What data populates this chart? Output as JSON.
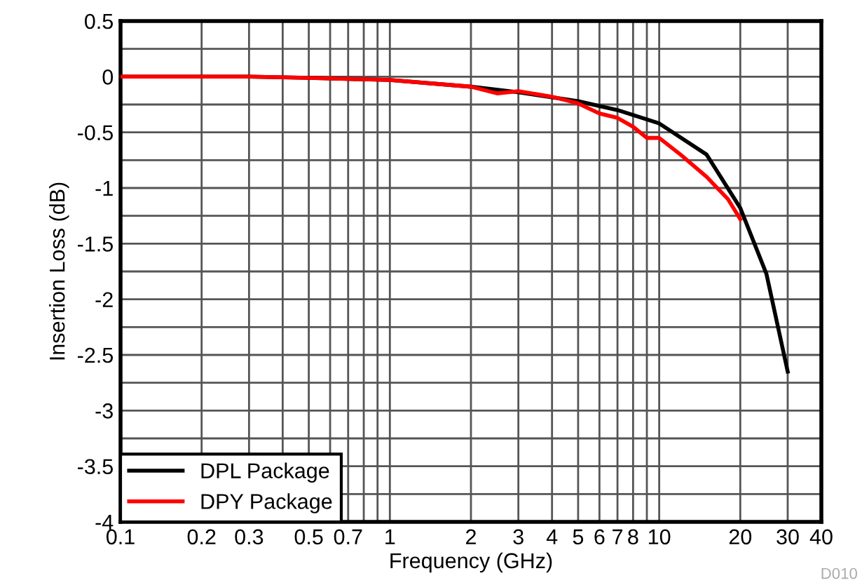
{
  "chart_data": {
    "type": "line",
    "xlabel": "Frequency (GHz)",
    "ylabel": "Insertion Loss (dB)",
    "log": "x",
    "xlim": [
      0.1,
      40
    ],
    "xticks": [
      0.1,
      0.2,
      0.3,
      {
        "value": 0.4,
        "label": null
      },
      0.5,
      {
        "value": 0.6,
        "label": null
      },
      0.7,
      {
        "value": 0.8,
        "label": null
      },
      {
        "value": 0.9,
        "label": null
      },
      1,
      2,
      3,
      4,
      5,
      6,
      7,
      8,
      {
        "value": 9,
        "label": null
      },
      10,
      20,
      30,
      40
    ],
    "ylim": [
      -4,
      0.5
    ],
    "yticks": [
      -4,
      {
        "value": -3.75,
        "label": null
      },
      -3.5,
      {
        "value": -3.25,
        "label": null
      },
      -3,
      {
        "value": -2.75,
        "label": null
      },
      -2.5,
      {
        "value": -2.25,
        "label": null
      },
      -2,
      {
        "value": -1.75,
        "label": null
      },
      -1.5,
      {
        "value": -1.25,
        "label": null
      },
      -1,
      {
        "value": -0.75,
        "label": null
      },
      -0.5,
      {
        "value": -0.25,
        "label": null
      },
      0,
      {
        "value": 0.25,
        "label": null
      },
      0.5
    ],
    "grid": true,
    "legend": "bottom left",
    "line_style": "solid",
    "marker": "none",
    "series": [
      {
        "name": "DPL Package",
        "color": "#000000",
        "x": [
          0.1,
          0.3,
          0.5,
          0.7,
          1,
          2,
          3,
          5,
          7,
          10,
          15,
          20,
          25,
          30
        ],
        "values": [
          0,
          0,
          -0.01,
          -0.02,
          -0.03,
          -0.09,
          -0.14,
          -0.22,
          -0.3,
          -0.42,
          -0.7,
          -1.18,
          -1.77,
          -2.65
        ]
      },
      {
        "name": "DPY Package",
        "color": "#ff0000",
        "x": [
          0.1,
          0.3,
          0.5,
          0.7,
          1,
          2,
          2.5,
          3,
          4,
          5,
          6,
          7,
          8,
          9,
          10,
          12,
          15,
          18,
          20
        ],
        "values": [
          0,
          0,
          -0.01,
          -0.02,
          -0.03,
          -0.09,
          -0.15,
          -0.13,
          -0.18,
          -0.24,
          -0.33,
          -0.37,
          -0.45,
          -0.55,
          -0.55,
          -0.7,
          -0.9,
          -1.1,
          -1.28
        ]
      }
    ],
    "annotations": [
      "D010"
    ]
  }
}
